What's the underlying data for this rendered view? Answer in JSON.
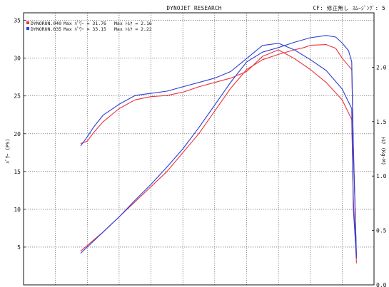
{
  "header": {
    "title": "DYNOJET  RESEARCH",
    "settings": "CF: 修正無し  ｽﾑｰｼﾞﾝｸﾞ: 5"
  },
  "legend": [
    {
      "run": "DYNORUN.040",
      "power_text": "Max ﾊﾟﾜｰ = 31.76",
      "torque_text": "Max ﾄﾙｸ = 2.16",
      "color": "#e8323c"
    },
    {
      "run": "DYNORUN.035",
      "power_text": "Max ﾊﾟﾜｰ = 33.15",
      "torque_text": "Max ﾄﾙｸ = 2.22",
      "color": "#2c3fd6"
    }
  ],
  "chart_data": {
    "type": "line",
    "y_left_label": "ﾊﾟﾜｰ (PS)",
    "y_right_label": "ﾄﾙｸ (Kg-M)",
    "y_left_ticks": [
      "35",
      "30",
      "25",
      "20",
      "15",
      "10",
      "5"
    ],
    "y_right_ticks": [
      "2.0",
      "1.5",
      "1.0",
      "0.5",
      "0.0"
    ],
    "y_left_range": [
      0,
      36
    ],
    "y_right_range": [
      0,
      2.5
    ],
    "x_range": [
      0,
      11
    ],
    "grid": true,
    "series": [
      {
        "name": "DYNORUN.040",
        "kind": "power",
        "color": "#e8323c",
        "x": [
          1.8,
          2.5,
          3.0,
          3.5,
          4.0,
          4.5,
          5.0,
          5.5,
          6.0,
          6.5,
          7.0,
          7.5,
          8.0,
          8.5,
          8.8,
          9.0,
          9.5,
          9.8,
          10.0,
          10.2,
          10.3,
          10.35,
          10.45
        ],
        "y": [
          4.5,
          7.0,
          9.0,
          11.0,
          13.0,
          15.0,
          17.5,
          20.0,
          23.0,
          26.0,
          28.5,
          29.8,
          30.5,
          31.1,
          31.4,
          31.7,
          31.8,
          31.3,
          30.0,
          29.0,
          28.5,
          19.0,
          3.5
        ]
      },
      {
        "name": "DYNORUN.035",
        "kind": "power",
        "color": "#2c3fd6",
        "x": [
          1.8,
          2.5,
          3.0,
          3.5,
          4.0,
          4.5,
          5.0,
          5.5,
          6.0,
          6.5,
          7.0,
          7.5,
          8.0,
          8.5,
          9.0,
          9.5,
          9.8,
          10.0,
          10.2,
          10.3,
          10.35,
          10.45
        ],
        "y": [
          4.2,
          7.0,
          9.0,
          11.2,
          13.3,
          15.6,
          18.0,
          20.8,
          23.8,
          26.8,
          29.5,
          30.8,
          31.4,
          32.1,
          32.7,
          33.0,
          32.8,
          32.0,
          31.0,
          29.5,
          18.0,
          4.0
        ]
      },
      {
        "name": "DYNORUN.040",
        "kind": "torque",
        "color": "#e8323c",
        "x": [
          1.8,
          2.0,
          2.2,
          2.5,
          3.0,
          3.5,
          4.0,
          4.5,
          5.0,
          5.5,
          6.0,
          6.5,
          7.0,
          7.5,
          8.0,
          8.5,
          9.0,
          9.5,
          10.0,
          10.3,
          10.35,
          10.45
        ],
        "y": [
          1.3,
          1.32,
          1.4,
          1.5,
          1.62,
          1.7,
          1.73,
          1.74,
          1.77,
          1.82,
          1.86,
          1.9,
          1.96,
          2.1,
          2.16,
          2.08,
          1.98,
          1.86,
          1.7,
          1.52,
          0.8,
          0.2
        ]
      },
      {
        "name": "DYNORUN.035",
        "kind": "torque",
        "color": "#2c3fd6",
        "x": [
          1.8,
          2.0,
          2.2,
          2.5,
          3.0,
          3.5,
          4.0,
          4.5,
          5.0,
          5.5,
          6.0,
          6.5,
          7.0,
          7.5,
          8.0,
          8.5,
          9.0,
          9.5,
          10.0,
          10.3,
          10.35,
          10.45
        ],
        "y": [
          1.28,
          1.36,
          1.45,
          1.56,
          1.66,
          1.74,
          1.76,
          1.78,
          1.82,
          1.86,
          1.9,
          1.96,
          2.08,
          2.2,
          2.22,
          2.16,
          2.07,
          1.97,
          1.8,
          1.62,
          0.7,
          0.25
        ]
      }
    ]
  }
}
